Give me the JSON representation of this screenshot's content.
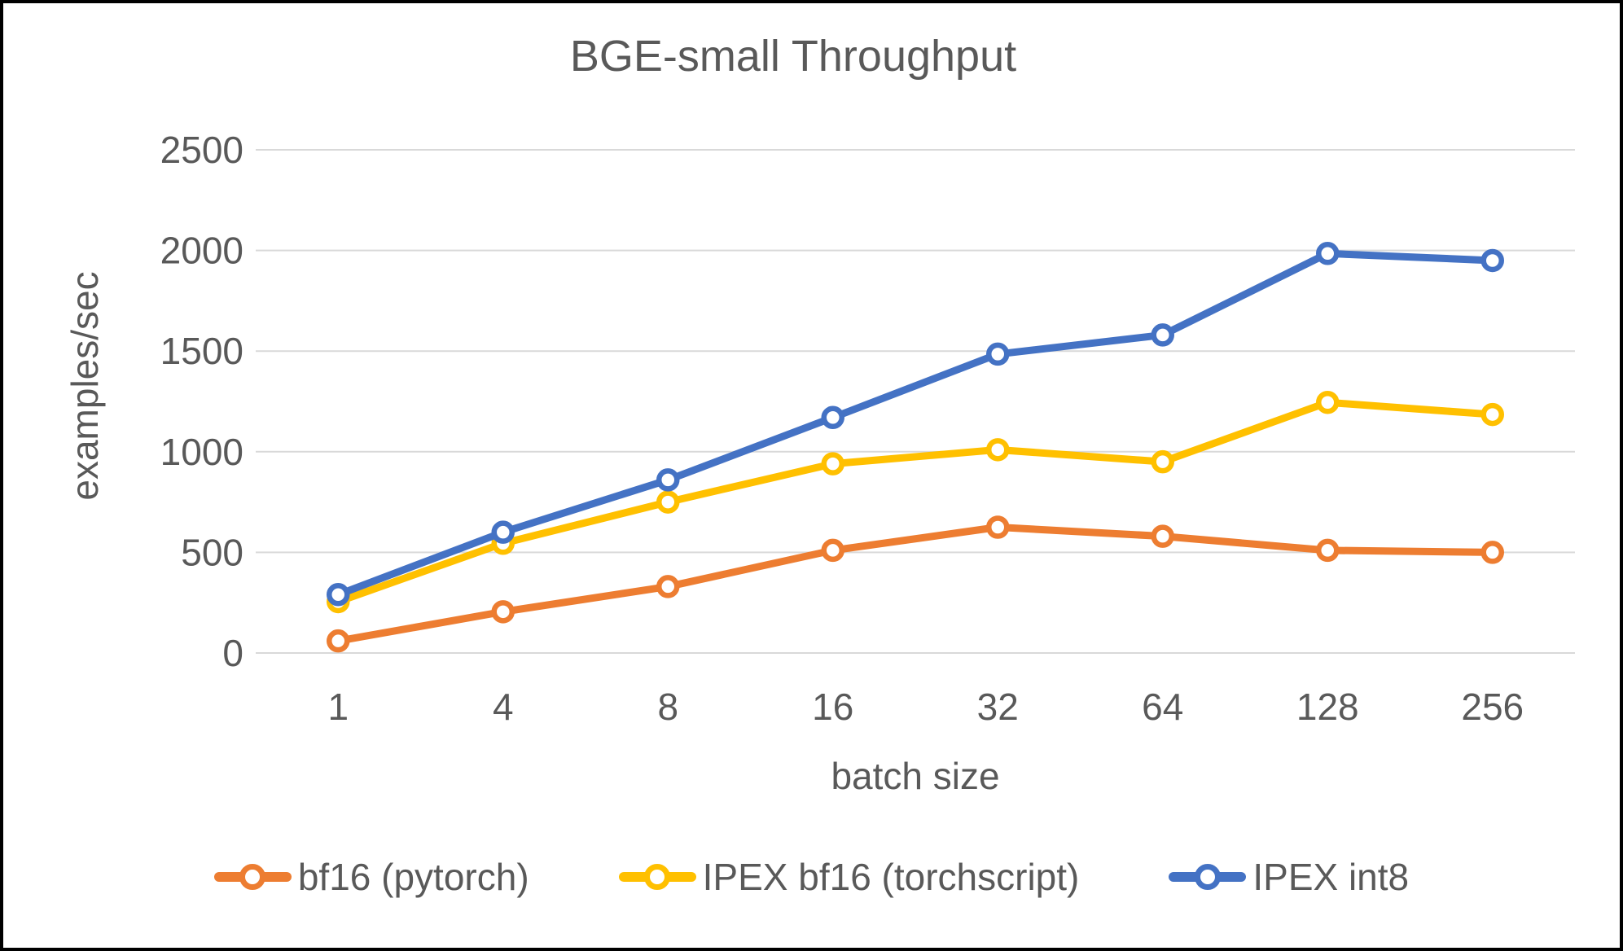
{
  "chart_data": {
    "type": "line",
    "title": "BGE-small Throughput",
    "xlabel": "batch size",
    "ylabel": "examples/sec",
    "categories": [
      "1",
      "4",
      "8",
      "16",
      "32",
      "64",
      "128",
      "256"
    ],
    "ylim": [
      0,
      2500
    ],
    "yticks": [
      0,
      500,
      1000,
      1500,
      2000,
      2500
    ],
    "grid": "horizontal",
    "legend_position": "bottom",
    "series": [
      {
        "name": "bf16 (pytorch)",
        "color": "#ED7D31",
        "values": [
          60,
          205,
          330,
          510,
          625,
          580,
          510,
          500
        ]
      },
      {
        "name": "IPEX bf16 (torchscript)",
        "color": "#FFC000",
        "values": [
          255,
          545,
          750,
          940,
          1010,
          950,
          1245,
          1185
        ]
      },
      {
        "name": "IPEX int8",
        "color": "#4472C4",
        "values": [
          290,
          600,
          860,
          1170,
          1485,
          1580,
          1985,
          1950
        ]
      }
    ],
    "colors": {
      "text": "#595959",
      "gridline": "#D9D9D9",
      "marker_fill": "#FFFFFF",
      "frame_border": "#000000",
      "background": "#FFFFFF"
    }
  }
}
